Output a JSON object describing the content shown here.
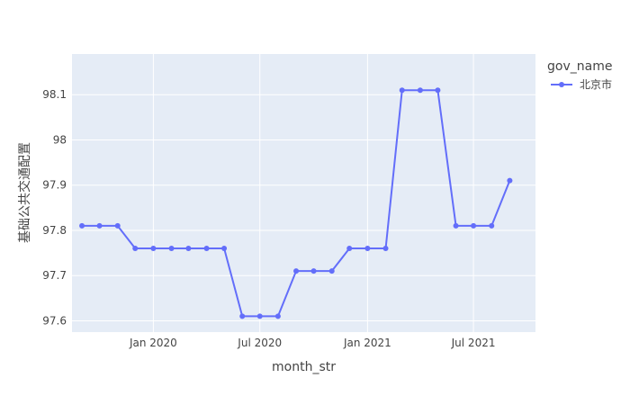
{
  "chart_data": {
    "type": "line",
    "xlabel": "month_str",
    "ylabel": "基础公共交通配置",
    "x_tick_labels": [
      "Jan 2020",
      "Jul 2020",
      "Jan 2021",
      "Jul 2021"
    ],
    "x_ticks": [
      "2020-01",
      "2020-07",
      "2021-01",
      "2021-07"
    ],
    "y_ticks": [
      97.6,
      97.7,
      97.8,
      97.9,
      98,
      98.1
    ],
    "y_tick_labels": [
      "97.6",
      "97.7",
      "97.8",
      "97.9",
      "98",
      "98.1"
    ],
    "ylim": [
      97.575,
      98.19
    ],
    "xlim": [
      "2019-08-15",
      "2021-10-15"
    ],
    "grid": true,
    "legend": {
      "title": "gov_name",
      "position": "top-right"
    },
    "series": [
      {
        "name": "北京市",
        "color": "#636efa",
        "x": [
          "2019-09",
          "2019-10",
          "2019-11",
          "2019-12",
          "2020-01",
          "2020-02",
          "2020-03",
          "2020-04",
          "2020-05",
          "2020-06",
          "2020-07",
          "2020-08",
          "2020-09",
          "2020-10",
          "2020-11",
          "2020-12",
          "2021-01",
          "2021-02",
          "2021-03",
          "2021-04",
          "2021-05",
          "2021-06",
          "2021-07",
          "2021-08",
          "2021-09"
        ],
        "y": [
          97.81,
          97.81,
          97.81,
          97.76,
          97.76,
          97.76,
          97.76,
          97.76,
          97.76,
          97.61,
          97.61,
          97.61,
          97.71,
          97.71,
          97.71,
          97.76,
          97.76,
          97.76,
          98.11,
          98.11,
          98.11,
          97.81,
          97.81,
          97.81,
          97.91
        ]
      }
    ]
  }
}
